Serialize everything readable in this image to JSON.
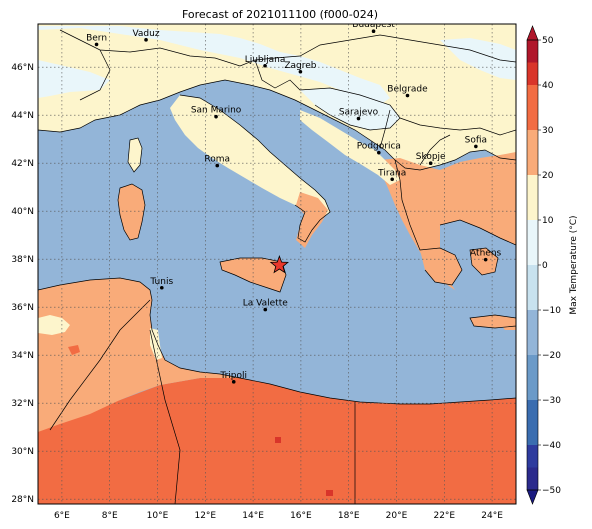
{
  "title": "Forecast of 2021011100 (f000-024)",
  "map": {
    "lon_range": [
      5,
      25
    ],
    "lat_range": [
      27.8,
      47.8
    ],
    "gridlines": true,
    "lon_ticks": [
      {
        "value": 6,
        "label": "6°E"
      },
      {
        "value": 8,
        "label": "8°E"
      },
      {
        "value": 10,
        "label": "10°E"
      },
      {
        "value": 12,
        "label": "12°E"
      },
      {
        "value": 14,
        "label": "14°E"
      },
      {
        "value": 16,
        "label": "16°E"
      },
      {
        "value": 18,
        "label": "18°E"
      },
      {
        "value": 20,
        "label": "20°E"
      },
      {
        "value": 22,
        "label": "22°E"
      },
      {
        "value": 24,
        "label": "24°E"
      }
    ],
    "lat_ticks": [
      {
        "value": 28,
        "label": "28°N"
      },
      {
        "value": 30,
        "label": "30°N"
      },
      {
        "value": 32,
        "label": "32°N"
      },
      {
        "value": 34,
        "label": "34°N"
      },
      {
        "value": 36,
        "label": "36°N"
      },
      {
        "value": 38,
        "label": "38°N"
      },
      {
        "value": 40,
        "label": "40°N"
      },
      {
        "value": 42,
        "label": "42°N"
      },
      {
        "value": 44,
        "label": "44°N"
      },
      {
        "value": 46,
        "label": "46°N"
      }
    ],
    "cities": [
      {
        "name": "Bern",
        "lon": 7.45,
        "lat": 46.95
      },
      {
        "name": "Vaduz",
        "lon": 9.52,
        "lat": 47.14
      },
      {
        "name": "Budapest",
        "lon": 19.04,
        "lat": 47.5
      },
      {
        "name": "Ljubljana",
        "lon": 14.5,
        "lat": 46.06
      },
      {
        "name": "Zagreb",
        "lon": 15.98,
        "lat": 45.81
      },
      {
        "name": "Belgrade",
        "lon": 20.46,
        "lat": 44.82
      },
      {
        "name": "San Marino",
        "lon": 12.45,
        "lat": 43.94
      },
      {
        "name": "Sarajevo",
        "lon": 18.41,
        "lat": 43.86
      },
      {
        "name": "Sofia",
        "lon": 23.32,
        "lat": 42.7
      },
      {
        "name": "Podgorica",
        "lon": 19.26,
        "lat": 42.44
      },
      {
        "name": "Skopje",
        "lon": 21.43,
        "lat": 42.0
      },
      {
        "name": "Roma",
        "lon": 12.5,
        "lat": 41.9
      },
      {
        "name": "Tirana",
        "lon": 19.82,
        "lat": 41.33
      },
      {
        "name": "Athens",
        "lon": 23.73,
        "lat": 37.98
      },
      {
        "name": "Tunis",
        "lon": 10.18,
        "lat": 36.81
      },
      {
        "name": "La Valette",
        "lon": 14.51,
        "lat": 35.9
      },
      {
        "name": "Tripoli",
        "lon": 13.19,
        "lat": 32.89
      }
    ],
    "marker": {
      "symbol": "star",
      "lon": 15.1,
      "lat": 37.75,
      "color": "#e8382c"
    }
  },
  "colorbar": {
    "label": "Max Temperature (°C)",
    "ticks": [
      -50,
      -40,
      -30,
      -20,
      -10,
      0,
      10,
      20,
      30,
      40,
      50
    ],
    "levels": [
      {
        "from": -50,
        "to": -45,
        "color": "#2b2a8c"
      },
      {
        "from": -45,
        "to": -40,
        "color": "#2e3b9e"
      },
      {
        "from": -40,
        "to": -30,
        "color": "#3a6db0"
      },
      {
        "from": -30,
        "to": -20,
        "color": "#6b9ac8"
      },
      {
        "from": -20,
        "to": -10,
        "color": "#93b5d8"
      },
      {
        "from": -10,
        "to": 0,
        "color": "#c8e2ef"
      },
      {
        "from": 0,
        "to": 10,
        "color": "#e9f6fa"
      },
      {
        "from": 10,
        "to": 20,
        "color": "#fdf5cc"
      },
      {
        "from": 20,
        "to": 30,
        "color": "#f9ab79"
      },
      {
        "from": 30,
        "to": 40,
        "color": "#f26c43"
      },
      {
        "from": 40,
        "to": 45,
        "color": "#d9352a"
      },
      {
        "from": 45,
        "to": 50,
        "color": "#b0172b"
      }
    ],
    "extend": "both"
  },
  "colors": {
    "sea": "#93b5d8",
    "cold_land": "#e9f6fa",
    "mild_land": "#fdf5cc",
    "warm_land": "#f9ab79",
    "hot_land": "#f26c43",
    "borders": "#000000",
    "gridline": "#555555"
  }
}
